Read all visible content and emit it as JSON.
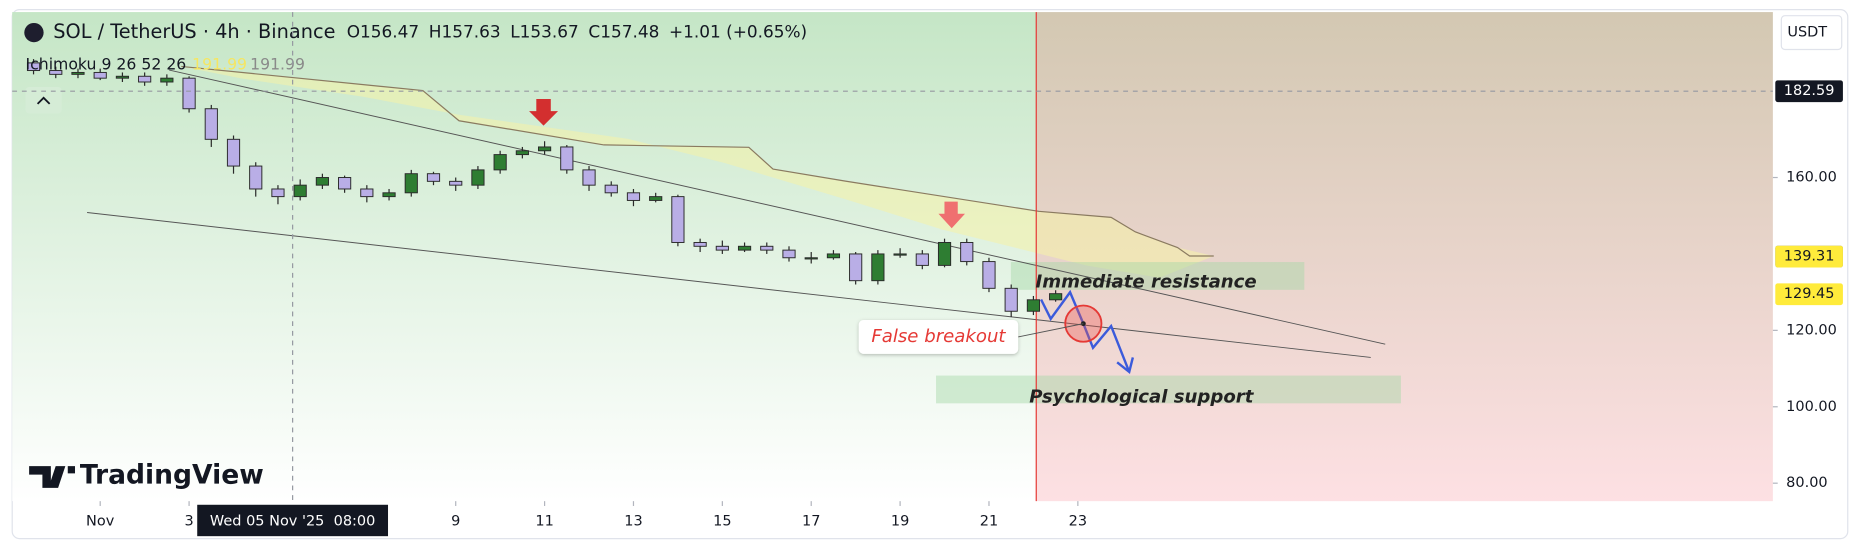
{
  "chart_data": {
    "type": "candlestick",
    "title": "SOL / TetherUS · 4h · Binance",
    "ohlc_header": [
      "O156.47",
      "H157.63",
      "L153.67",
      "C157.48",
      "+1.01 (+0.65%)"
    ],
    "indicator": "Ichimoku 9 26 52 26",
    "indicator_values": [
      191.99,
      191.99
    ],
    "currency": "USDT",
    "branding": "TradingView",
    "x": [
      -0.5,
      0,
      0.5,
      1,
      1.5,
      2,
      2.5,
      3,
      3.5,
      4,
      4.5,
      5,
      5.5,
      6,
      6.5,
      7,
      7.5,
      8,
      8.5,
      9,
      9.5,
      10,
      10.5,
      11,
      11.5,
      12,
      12.5,
      13,
      13.5,
      14,
      14.5,
      15,
      15.5,
      16,
      16.5,
      17,
      17.5,
      18,
      18.5,
      19,
      19.5,
      20,
      20.5,
      21,
      21.5,
      22,
      22.5
    ],
    "open": [
      190,
      188,
      187,
      187.5,
      186,
      186.5,
      185,
      186,
      178,
      170,
      163,
      157,
      155,
      158,
      160,
      157,
      155,
      156,
      161,
      159,
      158,
      162,
      166,
      167,
      168,
      162,
      158,
      156,
      154,
      155,
      143,
      142,
      141,
      142,
      141,
      139,
      139,
      140,
      133,
      140,
      140,
      137,
      143,
      138,
      131,
      125,
      128
    ],
    "high": [
      191,
      189,
      188.5,
      188.5,
      187.5,
      187.5,
      187,
      186.5,
      179,
      171,
      164,
      158,
      159.5,
      161,
      160.5,
      158,
      157,
      162,
      161.5,
      160,
      163,
      167,
      168,
      169.5,
      168.5,
      163,
      159,
      157,
      156,
      155.5,
      144,
      143.5,
      143,
      143,
      142,
      140.5,
      141,
      140.5,
      141,
      141.5,
      141,
      144,
      144,
      139,
      132,
      129,
      130.5
    ],
    "low": [
      187,
      186,
      186,
      185.5,
      185,
      184,
      184,
      177,
      168,
      161,
      155,
      153,
      154,
      157,
      156,
      153.5,
      154,
      155,
      158,
      156.5,
      157,
      161,
      165,
      166,
      161,
      156.5,
      155,
      152.5,
      153.5,
      142,
      140.5,
      140,
      140.5,
      140,
      138,
      137.5,
      138.5,
      132,
      132,
      139,
      136,
      136.5,
      137,
      130,
      123.5,
      124,
      127.5
    ],
    "close": [
      188,
      187,
      187.5,
      186,
      186.5,
      185,
      186,
      178,
      170,
      163,
      157,
      155,
      158,
      160,
      157,
      155,
      156,
      161,
      159,
      158,
      162,
      166,
      167,
      168,
      162,
      158,
      156,
      154,
      155,
      143,
      142,
      141,
      142,
      141,
      139,
      139,
      140,
      133,
      140,
      140,
      137,
      143,
      138,
      131,
      125,
      128,
      129.6
    ],
    "up_color": "#2e7d32",
    "down_color": "#b9aee6",
    "xlim": [
      -0.98,
      38.64
    ],
    "ylim": [
      75.3,
      203.3
    ],
    "xticks": [
      {
        "value": 1,
        "label": "Nov"
      },
      3,
      9,
      11,
      13,
      15,
      17,
      19,
      21,
      23
    ],
    "yticks": [
      {
        "value": 160,
        "label": "160.00"
      },
      {
        "value": 120,
        "label": "120.00"
      },
      {
        "value": 100,
        "label": "100.00"
      },
      {
        "value": 80,
        "label": "80.00"
      }
    ],
    "price_tags": [
      {
        "value": 182.59,
        "color": "#131722",
        "text_color": "#ffffff"
      },
      {
        "value": 139.31,
        "color": "#787b86",
        "text_color": "#ffffff"
      },
      {
        "value": 139.31,
        "color": "#ffeb3b",
        "text_color": "#131722"
      },
      {
        "value": 129.45,
        "color": "#ffeb3b",
        "text_color": "#131722"
      }
    ],
    "crosshair": {
      "x": 5.33,
      "y": 182.59,
      "x_label": "Wed 05 Nov '25  08:00"
    },
    "annotations": [
      "Immediate resistance",
      "False breakout",
      "Psychological support"
    ]
  }
}
